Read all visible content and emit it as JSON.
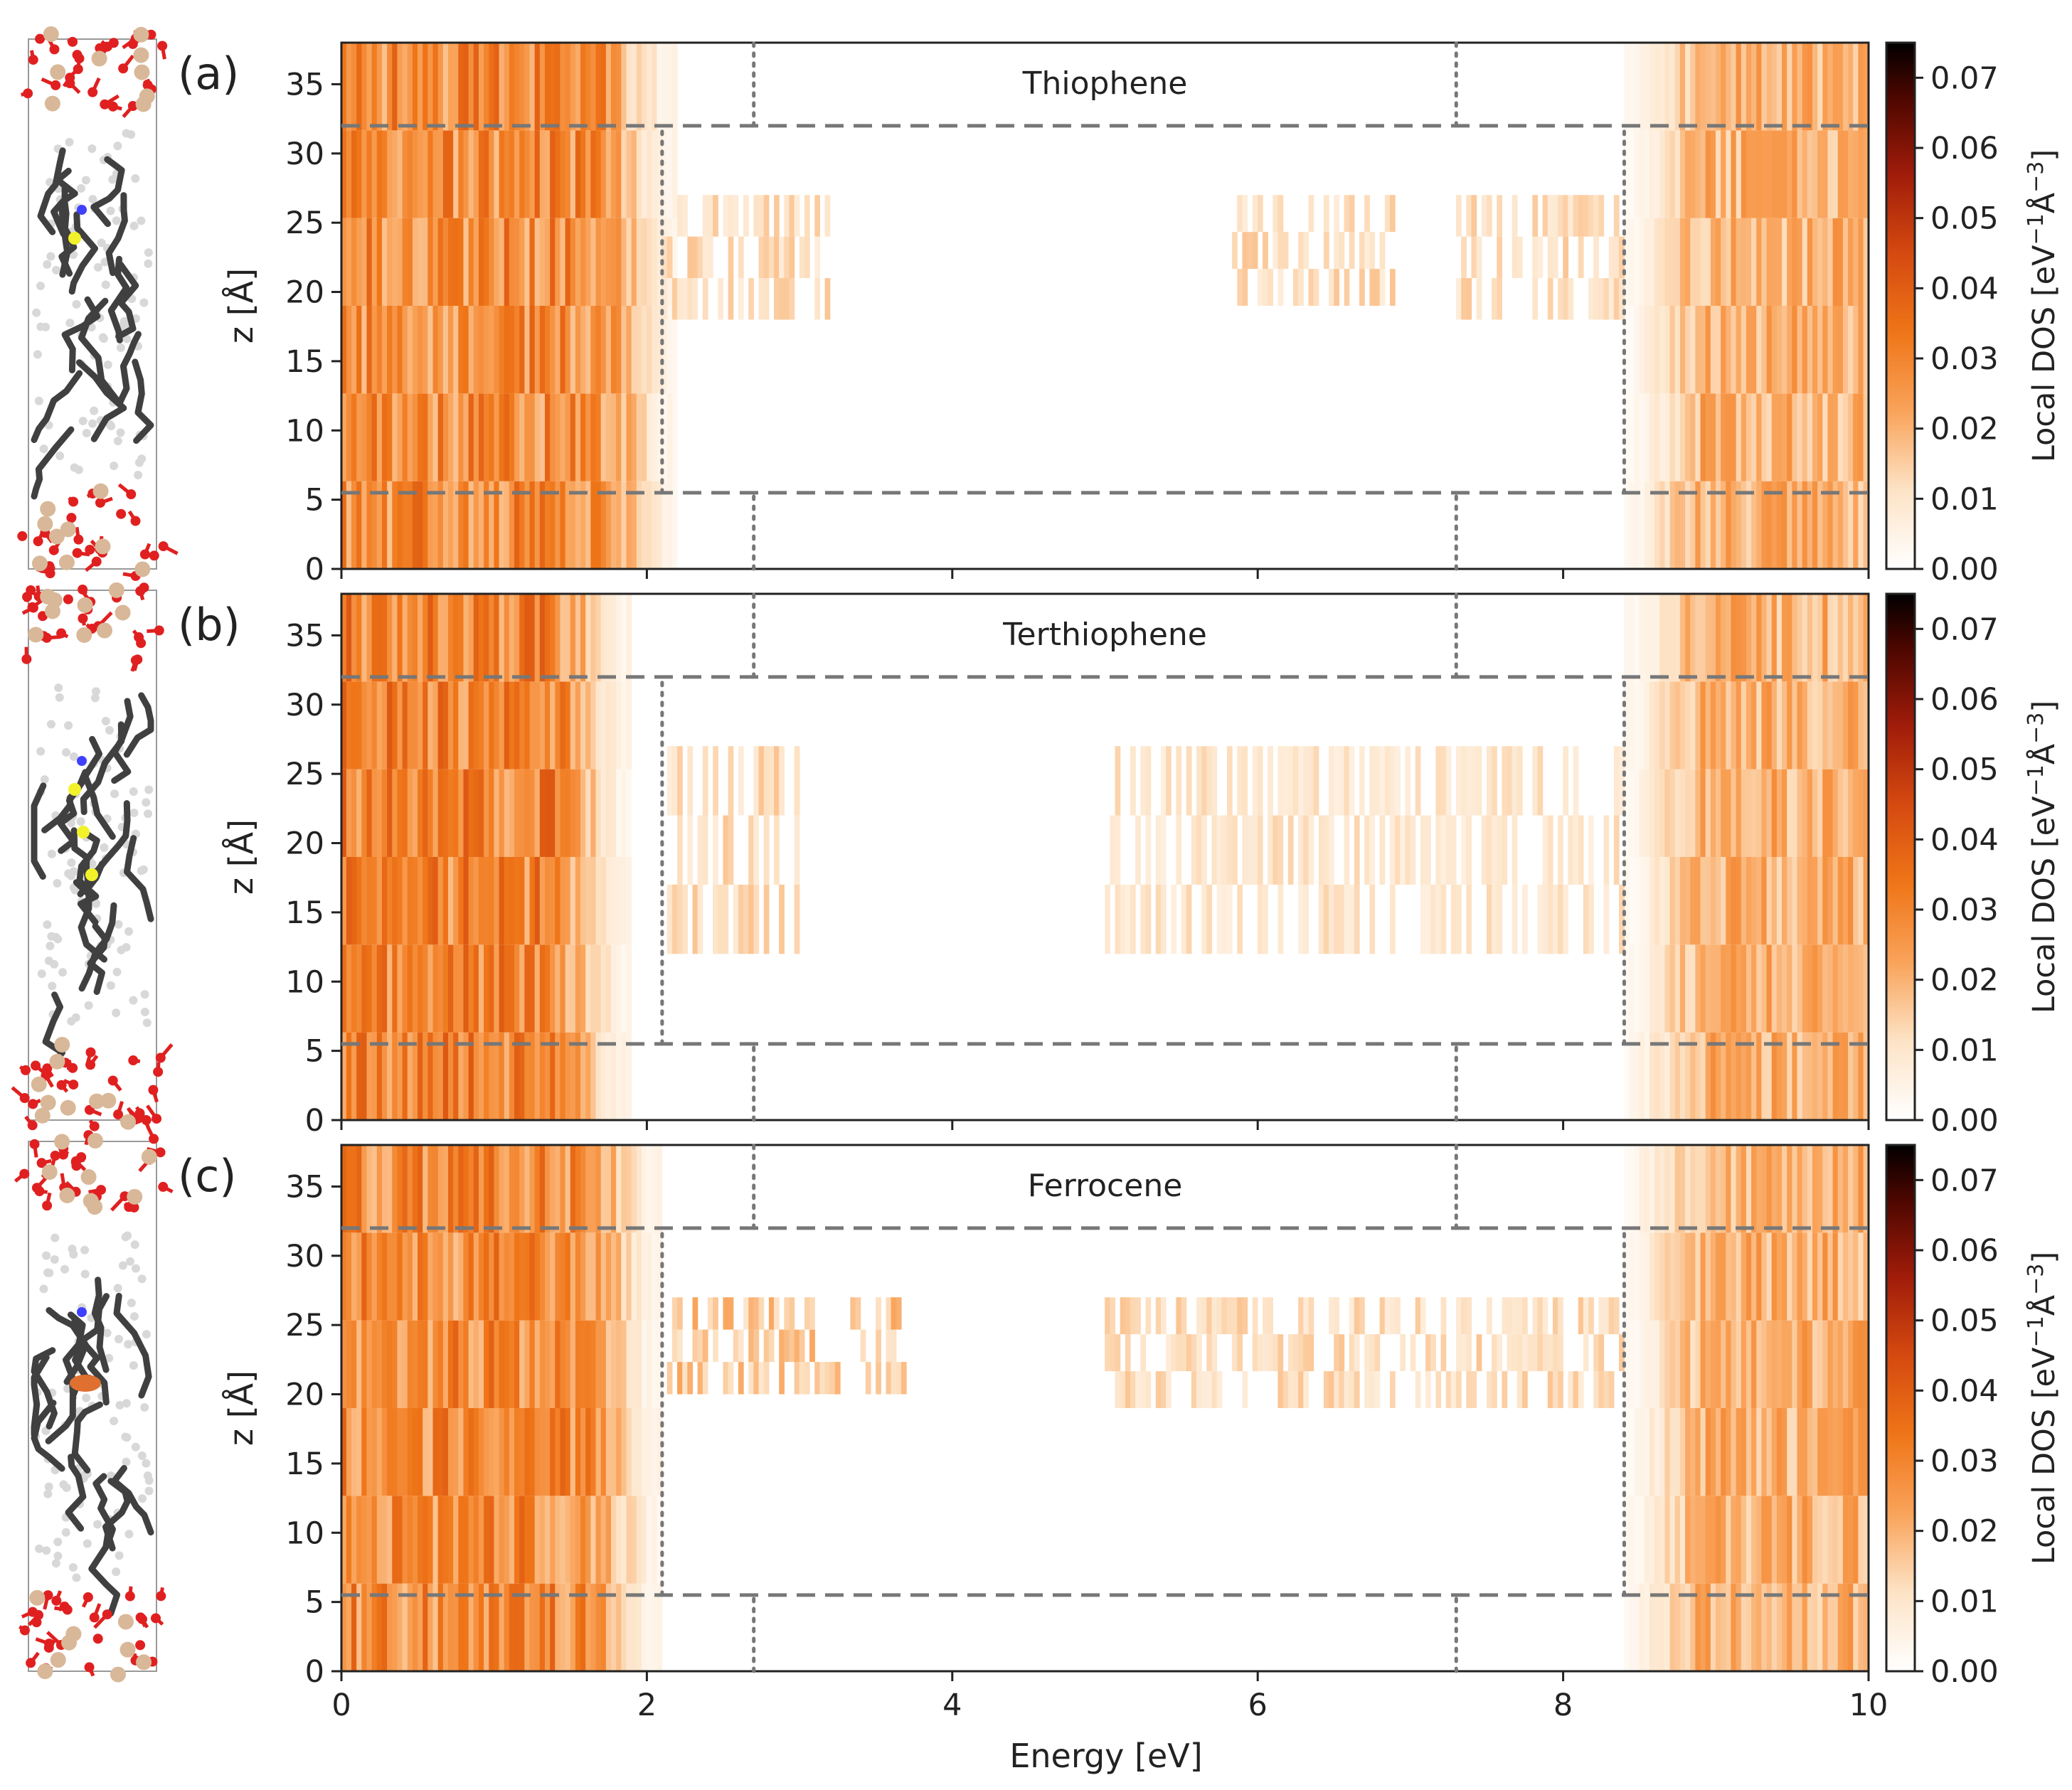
{
  "figure": {
    "xlabel": "Energy [eV]",
    "ylabel": "z [Å]",
    "colorbar_label_main": "Local DOS [eV",
    "colorbar_label_sup1": "−1",
    "colorbar_label_mid": "Å",
    "colorbar_label_sup2": "−3",
    "colorbar_label_end": "]",
    "colorbar_ticks": [
      "0.00",
      "0.01",
      "0.02",
      "0.03",
      "0.04",
      "0.05",
      "0.06",
      "0.07"
    ],
    "x_ticks": [
      "0",
      "2",
      "4",
      "6",
      "8",
      "10"
    ],
    "y_ticks": [
      "0",
      "5",
      "10",
      "15",
      "20",
      "25",
      "30",
      "35"
    ]
  },
  "colors": {
    "cmap_low": "#ffffff",
    "cmap_mid": "#f08020",
    "cmap_high": "#000000",
    "guide_line": "#777777",
    "carbon": "#404040",
    "hydrogen": "#d8d8d8",
    "oxygen": "#e02020",
    "silicon": "#d8b898",
    "sulfur": "#f2f22a",
    "nitrogen": "#4040ff",
    "iron": "#e07030"
  },
  "chart_data": [
    {
      "type": "heatmap",
      "panel": "(a)",
      "title": "Thiophene",
      "xlabel": "Energy [eV]",
      "ylabel": "z [Å]",
      "xlim": [
        0,
        10
      ],
      "ylim": [
        0,
        38
      ],
      "colorbar_label": "Local DOS [eV^-1 Å^-3]",
      "clim": [
        0,
        0.075
      ],
      "interface_z": [
        5.5,
        32
      ],
      "band_edges_bulk_eV": [
        2.7,
        7.3
      ],
      "band_edges_molecular_layer_eV": [
        2.1,
        8.4
      ],
      "features": [
        {
          "region": "valence",
          "e_range": [
            0,
            2.2
          ],
          "z_range": [
            0,
            38
          ],
          "level": 0.028
        },
        {
          "region": "conduction",
          "e_range": [
            8.4,
            10
          ],
          "z_range": [
            0,
            38
          ],
          "level": 0.02
        },
        {
          "region": "molecular states",
          "e_range": [
            2.1,
            3.2
          ],
          "z_range": [
            18,
            27
          ],
          "level": 0.012
        },
        {
          "region": "molecular states",
          "e_range": [
            5.8,
            6.9
          ],
          "z_range": [
            19,
            27
          ],
          "level": 0.012
        },
        {
          "region": "molecular states",
          "e_range": [
            7.3,
            8.4
          ],
          "z_range": [
            18,
            27
          ],
          "level": 0.012
        }
      ]
    },
    {
      "type": "heatmap",
      "panel": "(b)",
      "title": "Terthiophene",
      "xlabel": "Energy [eV]",
      "ylabel": "z [Å]",
      "xlim": [
        0,
        10
      ],
      "ylim": [
        0,
        38
      ],
      "colorbar_label": "Local DOS [eV^-1 Å^-3]",
      "clim": [
        0,
        0.075
      ],
      "interface_z": [
        5.5,
        32
      ],
      "band_edges_bulk_eV": [
        2.7,
        7.3
      ],
      "band_edges_molecular_layer_eV": [
        2.1,
        8.4
      ],
      "features": [
        {
          "region": "valence",
          "e_range": [
            0,
            1.9
          ],
          "z_range": [
            0,
            38
          ],
          "level": 0.03
        },
        {
          "region": "conduction",
          "e_range": [
            8.4,
            10
          ],
          "z_range": [
            0,
            38
          ],
          "level": 0.02
        },
        {
          "region": "molecular states",
          "e_range": [
            2.1,
            3.0
          ],
          "z_range": [
            12,
            27
          ],
          "level": 0.012
        },
        {
          "region": "molecular states",
          "e_range": [
            5.0,
            8.4
          ],
          "z_range": [
            12,
            27
          ],
          "level": 0.01
        }
      ]
    },
    {
      "type": "heatmap",
      "panel": "(c)",
      "title": "Ferrocene",
      "xlabel": "Energy [eV]",
      "ylabel": "z [Å]",
      "xlim": [
        0,
        10
      ],
      "ylim": [
        0,
        38
      ],
      "colorbar_label": "Local DOS [eV^-1 Å^-3]",
      "clim": [
        0,
        0.075
      ],
      "interface_z": [
        5.5,
        32
      ],
      "band_edges_bulk_eV": [
        2.7,
        7.3
      ],
      "band_edges_molecular_layer_eV": [
        2.1,
        8.4
      ],
      "features": [
        {
          "region": "valence",
          "e_range": [
            0,
            2.1
          ],
          "z_range": [
            0,
            38
          ],
          "level": 0.028
        },
        {
          "region": "conduction",
          "e_range": [
            8.4,
            10
          ],
          "z_range": [
            0,
            38
          ],
          "level": 0.02
        },
        {
          "region": "molecular states",
          "e_range": [
            2.1,
            3.7
          ],
          "z_range": [
            20,
            27
          ],
          "level": 0.016
        },
        {
          "region": "molecular states",
          "e_range": [
            5.0,
            8.4
          ],
          "z_range": [
            19,
            27
          ],
          "level": 0.012
        }
      ]
    }
  ]
}
